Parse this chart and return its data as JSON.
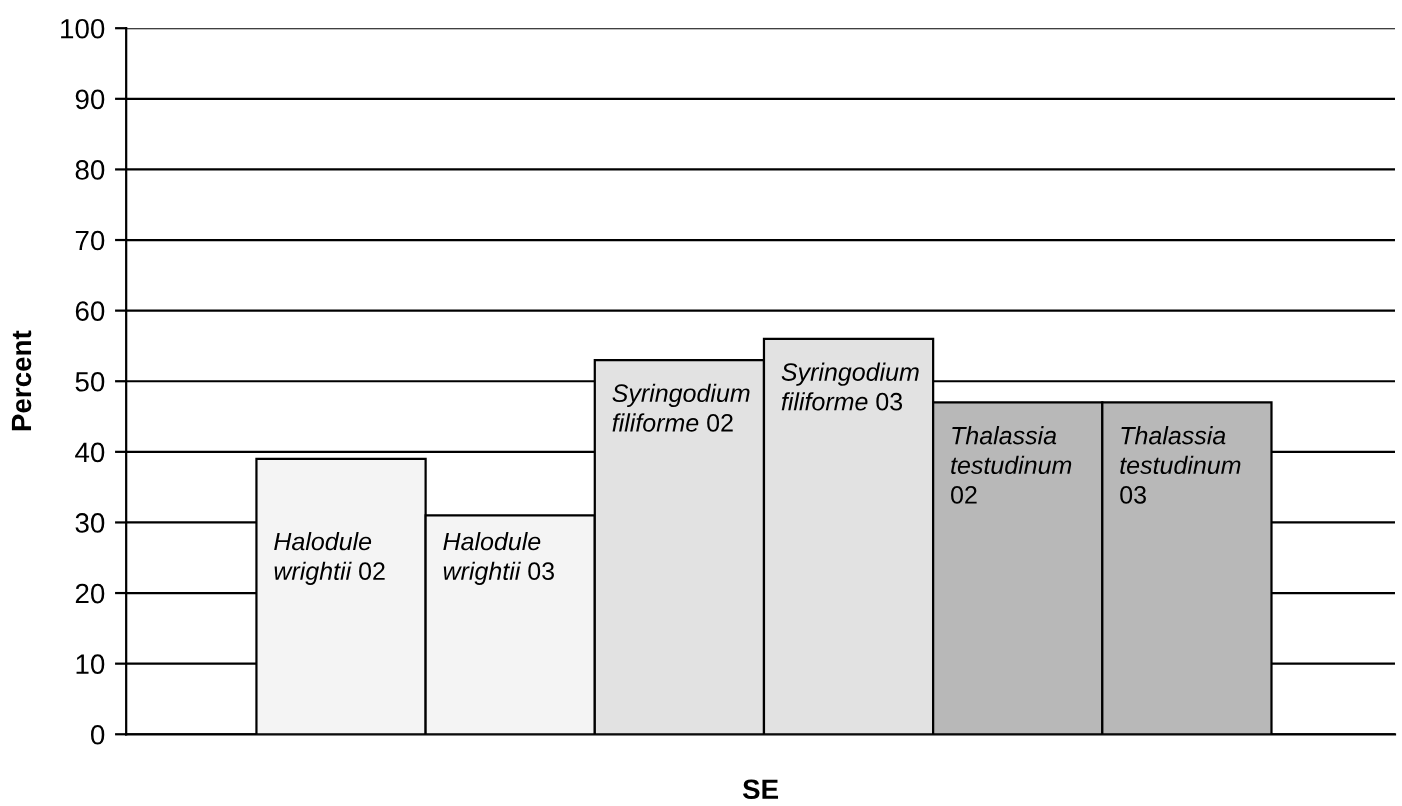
{
  "chart_data": {
    "type": "bar",
    "xlabel": "SE",
    "ylabel": "Percent",
    "categories": [
      "Halodule wrightii 02",
      "Halodule wrightii 03",
      "Syringodium filiforme 02",
      "Syringodium filiforme 03",
      "Thalassia testudinum 02",
      "Thalassia testudinum 03"
    ],
    "values": [
      39,
      31,
      53,
      56,
      47,
      47
    ],
    "colors": [
      "#f4f4f4",
      "#f4f4f4",
      "#e2e2e2",
      "#e2e2e2",
      "#b8b8b8",
      "#b8b8b8"
    ],
    "ylim": [
      0,
      100
    ],
    "yticks": [
      0,
      10,
      20,
      30,
      40,
      50,
      60,
      70,
      80,
      90,
      100
    ],
    "grid": "y"
  }
}
